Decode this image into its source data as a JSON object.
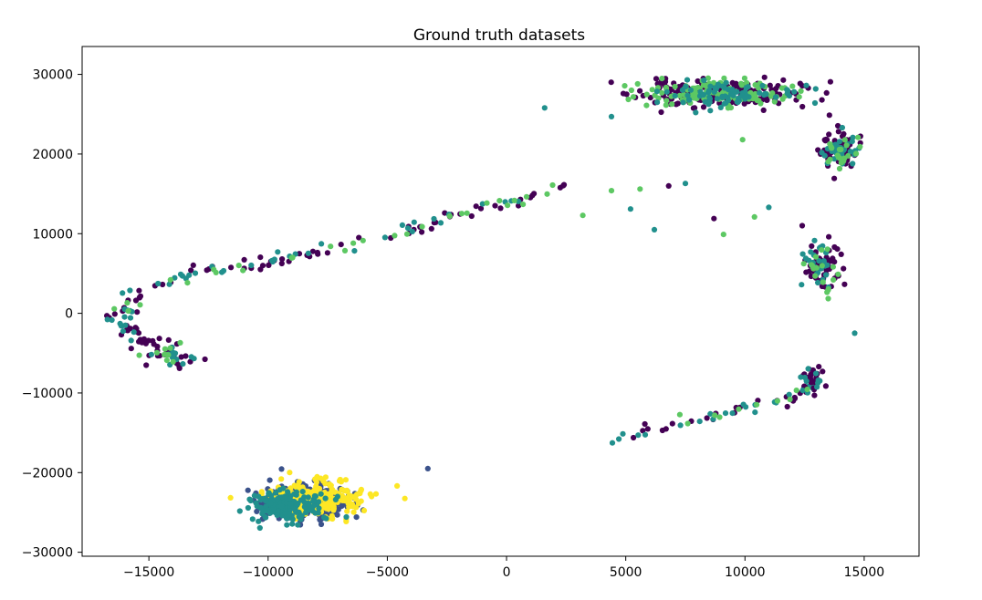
{
  "chart_data": {
    "type": "scatter",
    "title": "Ground truth datasets",
    "xlabel": "",
    "ylabel": "",
    "xlim": [
      -17800,
      17300
    ],
    "ylim": [
      -30500,
      33500
    ],
    "x_ticks": [
      -15000,
      -10000,
      -5000,
      0,
      5000,
      10000,
      15000
    ],
    "y_ticks": [
      -30000,
      -20000,
      -10000,
      0,
      10000,
      20000,
      30000
    ],
    "grid": false,
    "legend": "none",
    "colors": {
      "purple": "#440154",
      "blue": "#3b528b",
      "teal": "#21908d",
      "green": "#5dc863",
      "yellow": "#fde725"
    },
    "clusters": [
      {
        "color": "purple",
        "seed": 11,
        "n": 170,
        "center": [
          8800,
          27600
        ],
        "spread": [
          3000,
          1500
        ]
      },
      {
        "color": "green",
        "seed": 12,
        "n": 120,
        "center": [
          8600,
          27700
        ],
        "spread": [
          2900,
          1400
        ]
      },
      {
        "color": "teal",
        "seed": 13,
        "n": 80,
        "center": [
          8700,
          27500
        ],
        "spread": [
          3000,
          1500
        ]
      },
      {
        "color": "purple",
        "seed": 14,
        "n": 60,
        "center": [
          14000,
          20500
        ],
        "spread": [
          700,
          2400
        ]
      },
      {
        "color": "teal",
        "seed": 15,
        "n": 30,
        "center": [
          14000,
          20500
        ],
        "spread": [
          700,
          2400
        ]
      },
      {
        "color": "green",
        "seed": 16,
        "n": 20,
        "center": [
          14100,
          20500
        ],
        "spread": [
          700,
          2300
        ]
      },
      {
        "color": "purple",
        "seed": 17,
        "n": 45,
        "center": [
          13300,
          6000
        ],
        "spread": [
          700,
          3200
        ]
      },
      {
        "color": "teal",
        "seed": 18,
        "n": 25,
        "center": [
          13100,
          6000
        ],
        "spread": [
          700,
          3200
        ]
      },
      {
        "color": "green",
        "seed": 19,
        "n": 18,
        "center": [
          13300,
          5500
        ],
        "spread": [
          700,
          3200
        ]
      },
      {
        "color": "purple",
        "seed": 20,
        "n": 20,
        "center": [
          12900,
          -8000
        ],
        "spread": [
          500,
          1500
        ]
      },
      {
        "color": "teal",
        "seed": 21,
        "n": 12,
        "center": [
          12800,
          -8500
        ],
        "spread": [
          500,
          1500
        ]
      },
      {
        "color": "purple",
        "seed": 22,
        "n": 22,
        "center": [
          -14200,
          -5000
        ],
        "spread": [
          900,
          1500
        ]
      },
      {
        "color": "teal",
        "seed": 23,
        "n": 12,
        "center": [
          -14200,
          -5200
        ],
        "spread": [
          900,
          1500
        ]
      },
      {
        "color": "green",
        "seed": 24,
        "n": 10,
        "center": [
          -14400,
          -4800
        ],
        "spread": [
          900,
          1500
        ]
      },
      {
        "color": "blue",
        "seed": 25,
        "n": 300,
        "center": [
          -8400,
          -23700
        ],
        "spread": [
          1700,
          2000
        ]
      },
      {
        "color": "yellow",
        "seed": 26,
        "n": 240,
        "center": [
          -7800,
          -23300
        ],
        "spread": [
          1900,
          2000
        ]
      },
      {
        "color": "teal",
        "seed": 27,
        "n": 160,
        "center": [
          -9100,
          -24300
        ],
        "spread": [
          1500,
          1800
        ]
      }
    ],
    "paths": [
      {
        "color": "purple",
        "seed": 31,
        "n": 70,
        "jitter": [
          700,
          700
        ],
        "points": [
          [
            -16500,
            -1000
          ],
          [
            -15500,
            2500
          ],
          [
            -13000,
            5000
          ],
          [
            -10000,
            6500
          ],
          [
            -8000,
            8000
          ],
          [
            -4500,
            10000
          ],
          [
            -2000,
            12500
          ],
          [
            1000,
            14500
          ],
          [
            2500,
            16500
          ]
        ]
      },
      {
        "color": "teal",
        "seed": 32,
        "n": 40,
        "jitter": [
          700,
          700
        ],
        "points": [
          [
            -16500,
            -1000
          ],
          [
            -15500,
            2500
          ],
          [
            -13000,
            5000
          ],
          [
            -10000,
            6500
          ],
          [
            -8000,
            8000
          ],
          [
            -4500,
            10000
          ],
          [
            -2000,
            12500
          ],
          [
            1000,
            14500
          ],
          [
            2500,
            16500
          ]
        ]
      },
      {
        "color": "green",
        "seed": 33,
        "n": 30,
        "jitter": [
          700,
          700
        ],
        "points": [
          [
            -16500,
            -1000
          ],
          [
            -15500,
            2500
          ],
          [
            -13000,
            5000
          ],
          [
            -10000,
            6500
          ],
          [
            -8000,
            8000
          ],
          [
            -4500,
            10000
          ],
          [
            -2000,
            12500
          ],
          [
            1000,
            14500
          ],
          [
            2500,
            16500
          ]
        ]
      },
      {
        "color": "purple",
        "seed": 34,
        "n": 20,
        "jitter": [
          600,
          600
        ],
        "points": [
          [
            -16500,
            -700
          ],
          [
            -15800,
            -2300
          ],
          [
            -15000,
            -3800
          ]
        ]
      },
      {
        "color": "teal",
        "seed": 35,
        "n": 10,
        "jitter": [
          600,
          600
        ],
        "points": [
          [
            -16500,
            -700
          ],
          [
            -15800,
            -2300
          ],
          [
            -15000,
            -3800
          ]
        ]
      },
      {
        "color": "purple",
        "seed": 36,
        "n": 28,
        "jitter": [
          600,
          700
        ],
        "points": [
          [
            4500,
            -16000
          ],
          [
            6000,
            -14500
          ],
          [
            8000,
            -13500
          ],
          [
            10000,
            -12000
          ],
          [
            12000,
            -10500
          ],
          [
            13000,
            -8500
          ]
        ]
      },
      {
        "color": "teal",
        "seed": 37,
        "n": 22,
        "jitter": [
          600,
          700
        ],
        "points": [
          [
            4500,
            -16000
          ],
          [
            6000,
            -14500
          ],
          [
            8000,
            -13500
          ],
          [
            10000,
            -12000
          ],
          [
            12000,
            -10500
          ],
          [
            13000,
            -8500
          ]
        ]
      },
      {
        "color": "green",
        "seed": 38,
        "n": 10,
        "jitter": [
          600,
          700
        ],
        "points": [
          [
            4500,
            -16000
          ],
          [
            6000,
            -14500
          ],
          [
            8000,
            -13500
          ],
          [
            10000,
            -12000
          ],
          [
            12000,
            -10500
          ],
          [
            13000,
            -8500
          ]
        ]
      }
    ],
    "points": [
      {
        "x": 6800,
        "y": 16000,
        "color": "purple"
      },
      {
        "x": 7500,
        "y": 16300,
        "color": "teal"
      },
      {
        "x": 6200,
        "y": 10500,
        "color": "teal"
      },
      {
        "x": 9100,
        "y": 9900,
        "color": "green"
      },
      {
        "x": 8700,
        "y": 11900,
        "color": "purple"
      },
      {
        "x": 10400,
        "y": 12100,
        "color": "green"
      },
      {
        "x": 5200,
        "y": 13100,
        "color": "teal"
      },
      {
        "x": 5600,
        "y": 15600,
        "color": "green"
      },
      {
        "x": 4400,
        "y": 15400,
        "color": "green"
      },
      {
        "x": 3200,
        "y": 12300,
        "color": "green"
      },
      {
        "x": 12400,
        "y": 11000,
        "color": "purple"
      },
      {
        "x": 4400,
        "y": 24700,
        "color": "teal"
      },
      {
        "x": 1600,
        "y": 25800,
        "color": "teal"
      },
      {
        "x": -3300,
        "y": -19500,
        "color": "blue"
      },
      {
        "x": 14600,
        "y": -2500,
        "color": "teal"
      },
      {
        "x": 9900,
        "y": 21800,
        "color": "green"
      },
      {
        "x": 11000,
        "y": 13300,
        "color": "teal"
      }
    ]
  }
}
